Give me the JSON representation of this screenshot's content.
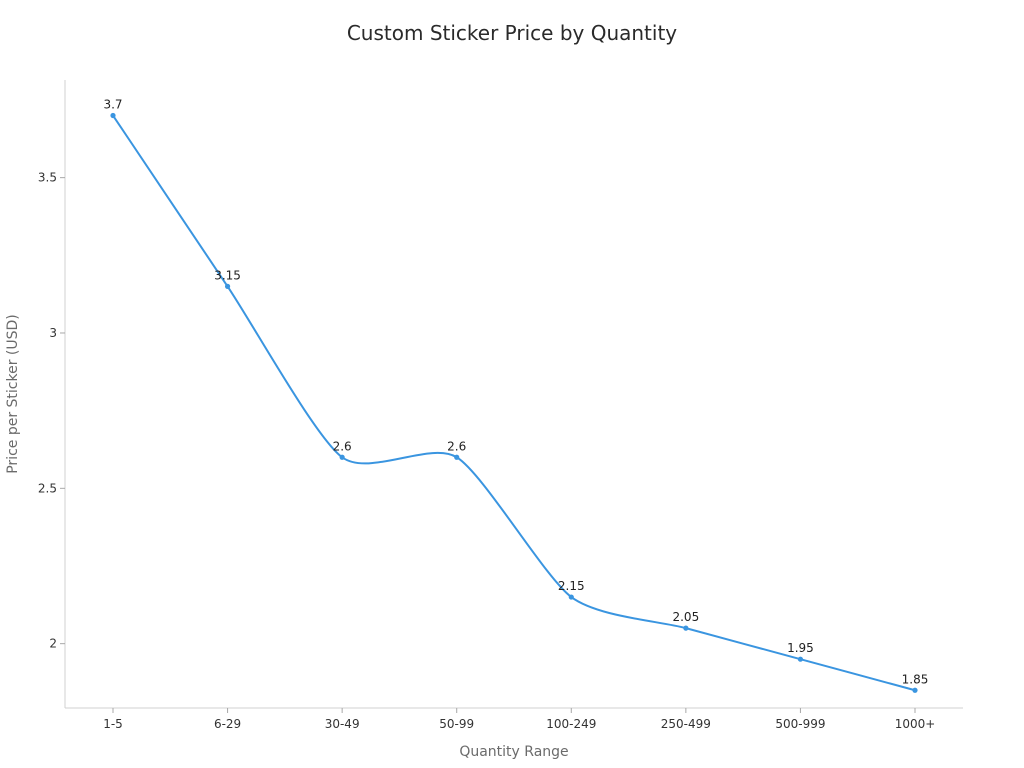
{
  "chart_data": {
    "type": "line",
    "title": "Custom Sticker Price by Quantity",
    "xlabel": "Quantity Range",
    "ylabel": "Price per Sticker (USD)",
    "categories": [
      "1-5",
      "6-29",
      "30-49",
      "50-99",
      "100-249",
      "250-499",
      "500-999",
      "1000+"
    ],
    "series": [
      {
        "values": [
          3.7,
          3.15,
          2.6,
          2.6,
          2.15,
          2.05,
          1.95,
          1.85
        ],
        "data_labels": [
          "3.7",
          "3.15",
          "2.6",
          "2.6",
          "2.15",
          "2.05",
          "1.95",
          "1.85"
        ]
      }
    ],
    "ylim": [
      1.7929,
      3.8143
    ],
    "yticks": [
      2,
      2.5,
      3,
      3.5
    ],
    "ytick_labels": [
      "2",
      "2.5",
      "3",
      "3.5"
    ],
    "line_shape": "smooth",
    "grid": false,
    "legend": "none",
    "line_color": "#3a95e0",
    "marker_color": "#3a95e0"
  }
}
